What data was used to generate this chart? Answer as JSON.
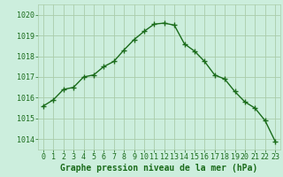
{
  "x": [
    0,
    1,
    2,
    3,
    4,
    5,
    6,
    7,
    8,
    9,
    10,
    11,
    12,
    13,
    14,
    15,
    16,
    17,
    18,
    19,
    20,
    21,
    22,
    23
  ],
  "y": [
    1015.6,
    1015.9,
    1016.4,
    1016.5,
    1017.0,
    1017.1,
    1017.5,
    1017.75,
    1018.3,
    1018.8,
    1019.2,
    1019.55,
    1019.6,
    1019.5,
    1018.6,
    1018.25,
    1017.75,
    1017.1,
    1016.9,
    1016.3,
    1015.8,
    1015.5,
    1014.9,
    1013.9
  ],
  "line_color": "#1a6b1a",
  "marker": "+",
  "marker_size": 4,
  "bg_color": "#cceedd",
  "grid_color": "#aaccaa",
  "ylabel_ticks": [
    1014,
    1015,
    1016,
    1017,
    1018,
    1019,
    1020
  ],
  "xlabel": "Graphe pression niveau de la mer (hPa)",
  "ylim": [
    1013.5,
    1020.5
  ],
  "xlim": [
    -0.5,
    23.5
  ],
  "title_color": "#1a6b1a",
  "xlabel_fontsize": 7.0,
  "tick_fontsize": 6.0,
  "linewidth": 1.0
}
